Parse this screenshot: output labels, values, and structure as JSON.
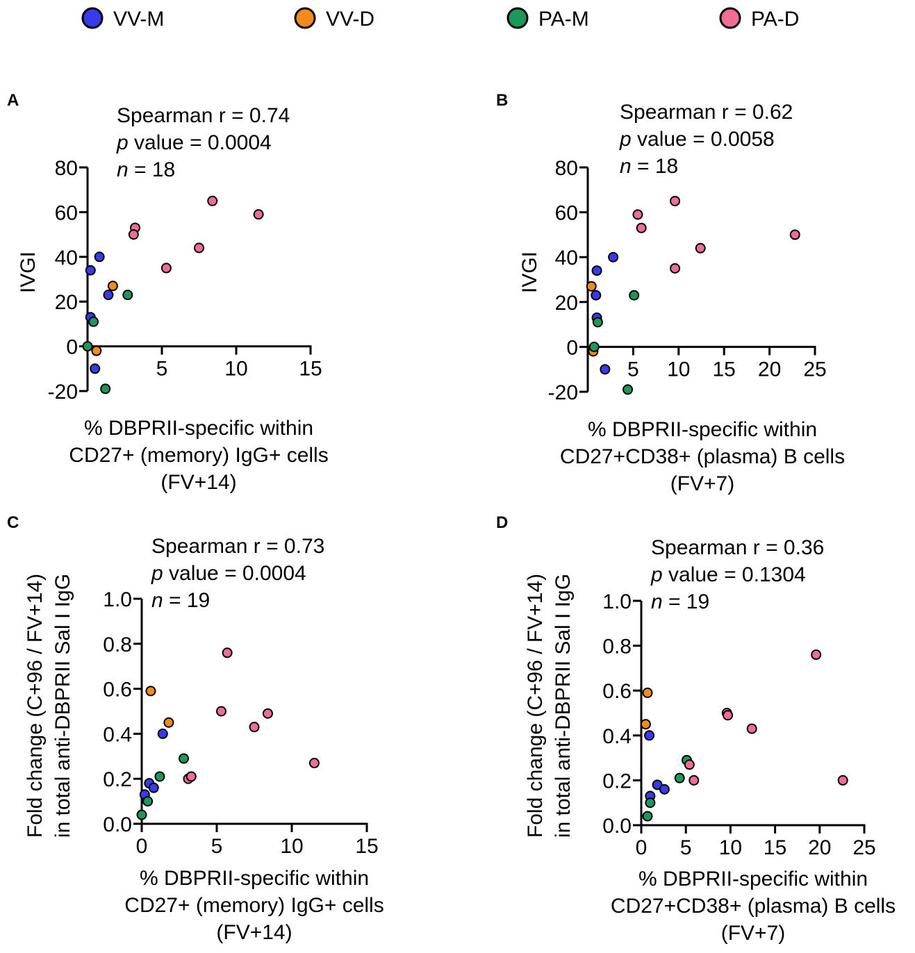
{
  "legend": {
    "entries": [
      {
        "label": "VV-M",
        "color": "#3a3aed"
      },
      {
        "label": "VV-D",
        "color": "#f28a1c"
      },
      {
        "label": "PA-M",
        "color": "#1a9a5a"
      },
      {
        "label": "PA-D",
        "color": "#f06d96"
      }
    ]
  },
  "chart_data": [
    {
      "panel": "A",
      "type": "scatter",
      "stats": {
        "line1": "Spearman r = 0.74",
        "p_label": "p",
        "p_text": " value = 0.0004",
        "n_label": "n",
        "n_text": " = 18"
      },
      "ylabel": "IVGI",
      "xlabel": [
        "% DBPRII-specific within",
        "CD27+ (memory) IgG+ cells",
        "(FV+14)"
      ],
      "xlim": [
        0,
        15
      ],
      "ylim": [
        -20,
        80
      ],
      "xticks": [
        5,
        10,
        15
      ],
      "yticks": [
        -20,
        0,
        20,
        40,
        60,
        80
      ],
      "points": [
        {
          "group": "VV-M",
          "x": 0.2,
          "y": 13
        },
        {
          "group": "VV-M",
          "x": 0.2,
          "y": 34
        },
        {
          "group": "VV-M",
          "x": 0.8,
          "y": 40
        },
        {
          "group": "VV-M",
          "x": 1.4,
          "y": 23
        },
        {
          "group": "VV-M",
          "x": 0.5,
          "y": -10
        },
        {
          "group": "VV-D",
          "x": 1.7,
          "y": 27
        },
        {
          "group": "VV-D",
          "x": 0.6,
          "y": -2
        },
        {
          "group": "PA-M",
          "x": 0.4,
          "y": 11
        },
        {
          "group": "PA-M",
          "x": 0.0,
          "y": 0
        },
        {
          "group": "PA-M",
          "x": 2.7,
          "y": 23
        },
        {
          "group": "PA-M",
          "x": 1.2,
          "y": -19
        },
        {
          "group": "PA-D",
          "x": 3.2,
          "y": 53
        },
        {
          "group": "PA-D",
          "x": 3.1,
          "y": 50
        },
        {
          "group": "PA-D",
          "x": 5.3,
          "y": 35
        },
        {
          "group": "PA-D",
          "x": 7.5,
          "y": 44
        },
        {
          "group": "PA-D",
          "x": 8.4,
          "y": 65
        },
        {
          "group": "PA-D",
          "x": 11.5,
          "y": 59
        }
      ]
    },
    {
      "panel": "B",
      "type": "scatter",
      "stats": {
        "line1": "Spearman r = 0.62",
        "p_label": "p",
        "p_text": " value = 0.0058",
        "n_label": "n",
        "n_text": " = 18"
      },
      "ylabel": "IVGI",
      "xlabel": [
        "% DBPRII-specific within",
        "CD27+CD38+ (plasma) B cells",
        "(FV+7)"
      ],
      "xlim": [
        0,
        25
      ],
      "ylim": [
        -20,
        80
      ],
      "xticks": [
        5,
        10,
        15,
        20,
        25
      ],
      "yticks": [
        -20,
        0,
        20,
        40,
        60,
        80
      ],
      "points": [
        {
          "group": "VV-M",
          "x": 1.0,
          "y": 34
        },
        {
          "group": "VV-M",
          "x": 2.8,
          "y": 40
        },
        {
          "group": "VV-M",
          "x": 0.9,
          "y": 23
        },
        {
          "group": "VV-M",
          "x": 1.0,
          "y": 13
        },
        {
          "group": "VV-M",
          "x": 1.9,
          "y": -10
        },
        {
          "group": "VV-D",
          "x": 0.4,
          "y": 27
        },
        {
          "group": "VV-D",
          "x": 0.6,
          "y": -2
        },
        {
          "group": "PA-M",
          "x": 1.1,
          "y": 11
        },
        {
          "group": "PA-M",
          "x": 0.7,
          "y": 0
        },
        {
          "group": "PA-M",
          "x": 5.1,
          "y": 23
        },
        {
          "group": "PA-M",
          "x": 4.4,
          "y": -19
        },
        {
          "group": "PA-D",
          "x": 5.5,
          "y": 59
        },
        {
          "group": "PA-D",
          "x": 5.9,
          "y": 53
        },
        {
          "group": "PA-D",
          "x": 9.6,
          "y": 65
        },
        {
          "group": "PA-D",
          "x": 9.6,
          "y": 35
        },
        {
          "group": "PA-D",
          "x": 12.4,
          "y": 44
        },
        {
          "group": "PA-D",
          "x": 22.8,
          "y": 50
        }
      ]
    },
    {
      "panel": "C",
      "type": "scatter",
      "stats": {
        "line1": "Spearman r = 0.73",
        "p_label": "p",
        "p_text": " value = 0.0004",
        "n_label": "n",
        "n_text": " = 19"
      },
      "ylabel": [
        "Fold change (C+96 / FV+14)",
        "in total anti-DBPRII Sal I IgG"
      ],
      "xlabel": [
        "% DBPRII-specific within",
        "CD27+ (memory) IgG+ cells",
        "(FV+14)"
      ],
      "xlim": [
        0,
        15
      ],
      "ylim": [
        0,
        1.0
      ],
      "xticks": [
        0,
        5,
        10,
        15
      ],
      "yticks": [
        0.0,
        0.2,
        0.4,
        0.6,
        0.8,
        1.0
      ],
      "points": [
        {
          "group": "VV-M",
          "x": 1.4,
          "y": 0.4
        },
        {
          "group": "VV-M",
          "x": 0.2,
          "y": 0.13
        },
        {
          "group": "VV-M",
          "x": 0.5,
          "y": 0.18
        },
        {
          "group": "VV-M",
          "x": 0.8,
          "y": 0.16
        },
        {
          "group": "VV-D",
          "x": 0.6,
          "y": 0.59
        },
        {
          "group": "VV-D",
          "x": 1.8,
          "y": 0.45
        },
        {
          "group": "PA-M",
          "x": 2.8,
          "y": 0.29
        },
        {
          "group": "PA-M",
          "x": 1.2,
          "y": 0.21
        },
        {
          "group": "PA-M",
          "x": 0.4,
          "y": 0.1
        },
        {
          "group": "PA-M",
          "x": 0.0,
          "y": 0.04
        },
        {
          "group": "PA-D",
          "x": 5.7,
          "y": 0.76
        },
        {
          "group": "PA-D",
          "x": 5.3,
          "y": 0.5
        },
        {
          "group": "PA-D",
          "x": 8.4,
          "y": 0.49
        },
        {
          "group": "PA-D",
          "x": 7.5,
          "y": 0.43
        },
        {
          "group": "PA-D",
          "x": 11.5,
          "y": 0.27
        },
        {
          "group": "PA-D",
          "x": 3.1,
          "y": 0.2
        },
        {
          "group": "PA-D",
          "x": 3.3,
          "y": 0.21
        }
      ]
    },
    {
      "panel": "D",
      "type": "scatter",
      "stats": {
        "line1": "Spearman r = 0.36",
        "p_label": "p",
        "p_text": " value = 0.1304",
        "n_label": "n",
        "n_text": " = 19"
      },
      "ylabel": [
        "Fold change (C+96 / FV+14)",
        "in total anti-DBPRII Sal I IgG"
      ],
      "xlabel": [
        "% DBPRII-specific within",
        "CD27+CD38+ (plasma) B cells",
        "(FV+7)"
      ],
      "xlim": [
        0,
        25
      ],
      "ylim": [
        0,
        1.0
      ],
      "xticks": [
        0,
        5,
        10,
        15,
        20,
        25
      ],
      "yticks": [
        0.0,
        0.2,
        0.4,
        0.6,
        0.8,
        1.0
      ],
      "points": [
        {
          "group": "VV-M",
          "x": 0.9,
          "y": 0.4
        },
        {
          "group": "VV-M",
          "x": 1.0,
          "y": 0.13
        },
        {
          "group": "VV-M",
          "x": 1.8,
          "y": 0.18
        },
        {
          "group": "VV-M",
          "x": 2.6,
          "y": 0.16
        },
        {
          "group": "VV-D",
          "x": 0.7,
          "y": 0.59
        },
        {
          "group": "VV-D",
          "x": 0.5,
          "y": 0.45
        },
        {
          "group": "PA-M",
          "x": 5.1,
          "y": 0.29
        },
        {
          "group": "PA-M",
          "x": 4.3,
          "y": 0.21
        },
        {
          "group": "PA-M",
          "x": 1.0,
          "y": 0.1
        },
        {
          "group": "PA-M",
          "x": 0.7,
          "y": 0.04
        },
        {
          "group": "PA-D",
          "x": 19.6,
          "y": 0.76
        },
        {
          "group": "PA-D",
          "x": 9.6,
          "y": 0.5
        },
        {
          "group": "PA-D",
          "x": 9.7,
          "y": 0.49
        },
        {
          "group": "PA-D",
          "x": 12.4,
          "y": 0.43
        },
        {
          "group": "PA-D",
          "x": 5.4,
          "y": 0.27
        },
        {
          "group": "PA-D",
          "x": 5.9,
          "y": 0.2
        },
        {
          "group": "PA-D",
          "x": 22.6,
          "y": 0.2
        }
      ]
    }
  ]
}
